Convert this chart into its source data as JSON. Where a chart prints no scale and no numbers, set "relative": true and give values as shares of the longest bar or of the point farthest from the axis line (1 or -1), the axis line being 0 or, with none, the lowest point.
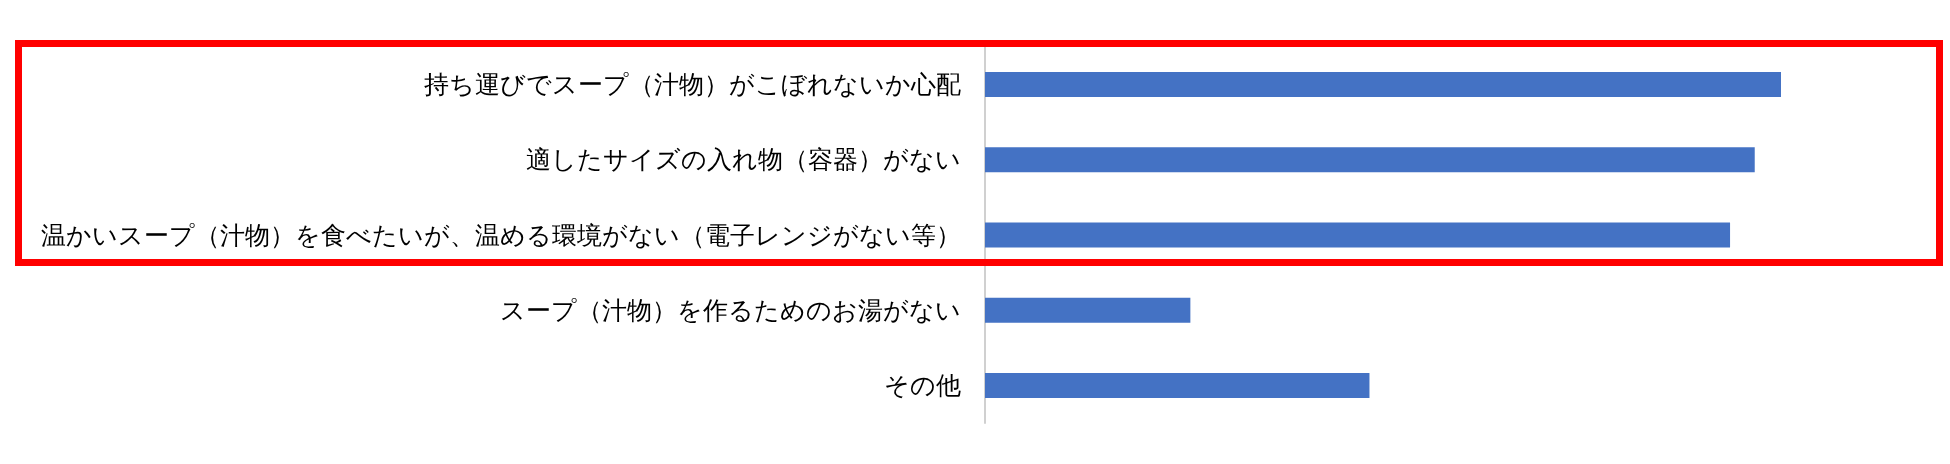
{
  "chart_data": {
    "type": "bar",
    "orientation": "horizontal",
    "relative": true,
    "categories": [
      "持ち運びでスープ（汁物）がこぼれないか心配",
      "適したサイズの入れ物（容器）がない",
      "温かいスープ（汁物）を食べたいが、温める環境がない（電子レンジがない等）",
      "スープ（汁物）を作るためのお湯がない",
      "その他"
    ],
    "values": [
      1,
      0.967,
      0.936,
      0.258,
      0.483
    ],
    "color": "#4472c4"
  }
}
